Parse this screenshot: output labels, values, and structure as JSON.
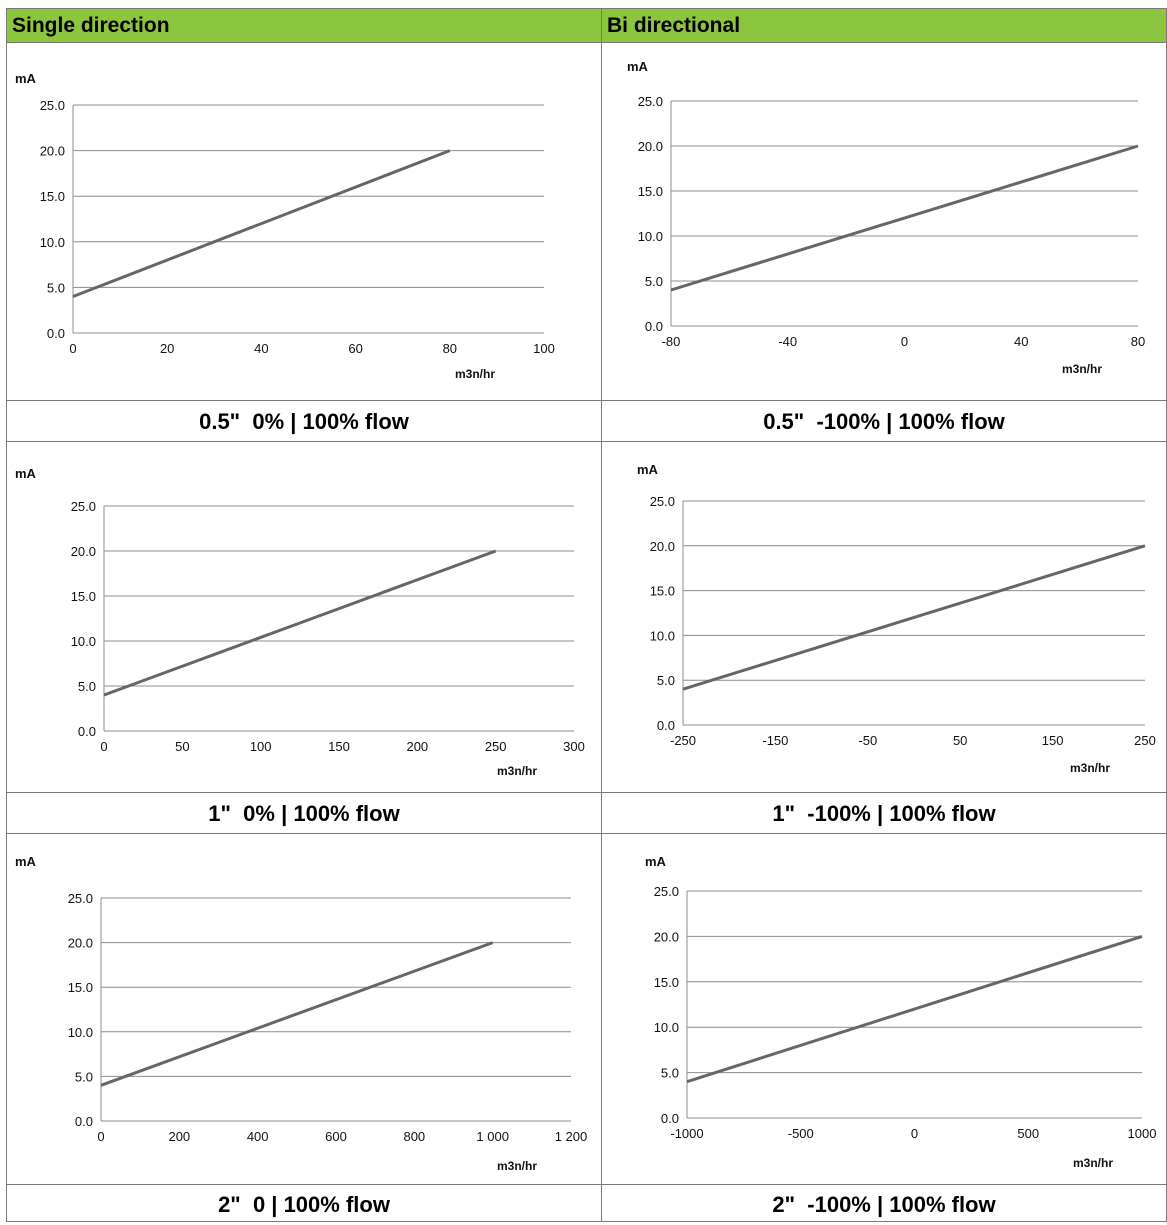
{
  "headers": {
    "single": "Single direction",
    "bi": "Bi directional"
  },
  "captions": [
    "0.5\"  0% | 100% flow",
    "0.5\"  -100% | 100% flow",
    "1\"  0% | 100% flow",
    "1\"  -100% | 100% flow",
    "2\"  0 | 100% flow",
    "2\"  -100% | 100% flow"
  ],
  "chart_data": [
    {
      "type": "line",
      "ylabel": "mA",
      "xlabel": "m3n/hr",
      "ylim": [
        0,
        25
      ],
      "xlim": [
        0,
        100
      ],
      "yticks": [
        "0.0",
        "5.0",
        "10.0",
        "15.0",
        "20.0",
        "25.0"
      ],
      "xticks": [
        {
          "v": 0,
          "label": "0"
        },
        {
          "v": 20,
          "label": "20"
        },
        {
          "v": 40,
          "label": "40"
        },
        {
          "v": 60,
          "label": "60"
        },
        {
          "v": 80,
          "label": "80"
        },
        {
          "v": 100,
          "label": "100"
        }
      ],
      "series": [
        {
          "x": [
            0,
            80
          ],
          "y": [
            4,
            20
          ]
        }
      ],
      "grid": true
    },
    {
      "type": "line",
      "ylabel": "mA",
      "xlabel": "m3n/hr",
      "ylim": [
        0,
        25
      ],
      "xlim": [
        -80,
        80
      ],
      "yticks": [
        "0.0",
        "5.0",
        "10.0",
        "15.0",
        "20.0",
        "25.0"
      ],
      "xticks": [
        {
          "v": -80,
          "label": "-80"
        },
        {
          "v": -40,
          "label": "-40"
        },
        {
          "v": 0,
          "label": "0"
        },
        {
          "v": 40,
          "label": "40"
        },
        {
          "v": 80,
          "label": "80"
        }
      ],
      "series": [
        {
          "x": [
            -80,
            80
          ],
          "y": [
            4,
            20
          ]
        }
      ],
      "grid": true
    },
    {
      "type": "line",
      "ylabel": "mA",
      "xlabel": "m3n/hr",
      "ylim": [
        0,
        25
      ],
      "xlim": [
        0,
        300
      ],
      "yticks": [
        "0.0",
        "5.0",
        "10.0",
        "15.0",
        "20.0",
        "25.0"
      ],
      "xticks": [
        {
          "v": 0,
          "label": "0"
        },
        {
          "v": 50,
          "label": "50"
        },
        {
          "v": 100,
          "label": "100"
        },
        {
          "v": 150,
          "label": "150"
        },
        {
          "v": 200,
          "label": "200"
        },
        {
          "v": 250,
          "label": "250"
        },
        {
          "v": 300,
          "label": "300"
        }
      ],
      "series": [
        {
          "x": [
            0,
            250
          ],
          "y": [
            4,
            20
          ]
        }
      ],
      "grid": true
    },
    {
      "type": "line",
      "ylabel": "mA",
      "xlabel": "m3n/hr",
      "ylim": [
        0,
        25
      ],
      "xlim": [
        -250,
        250
      ],
      "yticks": [
        "0.0",
        "5.0",
        "10.0",
        "15.0",
        "20.0",
        "25.0"
      ],
      "xticks": [
        {
          "v": -250,
          "label": "-250"
        },
        {
          "v": -150,
          "label": "-150"
        },
        {
          "v": -50,
          "label": "-50"
        },
        {
          "v": 50,
          "label": "50"
        },
        {
          "v": 150,
          "label": "150"
        },
        {
          "v": 250,
          "label": "250"
        }
      ],
      "series": [
        {
          "x": [
            -250,
            250
          ],
          "y": [
            4,
            20
          ]
        }
      ],
      "grid": true
    },
    {
      "type": "line",
      "ylabel": "mA",
      "xlabel": "m3n/hr",
      "ylim": [
        0,
        25
      ],
      "xlim": [
        0,
        1200
      ],
      "yticks": [
        "0.0",
        "5.0",
        "10.0",
        "15.0",
        "20.0",
        "25.0"
      ],
      "xticks": [
        {
          "v": 0,
          "label": "0"
        },
        {
          "v": 200,
          "label": "200"
        },
        {
          "v": 400,
          "label": "400"
        },
        {
          "v": 600,
          "label": "600"
        },
        {
          "v": 800,
          "label": "800"
        },
        {
          "v": 1000,
          "label": "1 000"
        },
        {
          "v": 1200,
          "label": "1 200"
        }
      ],
      "series": [
        {
          "x": [
            0,
            1000
          ],
          "y": [
            4,
            20
          ]
        }
      ],
      "grid": true
    },
    {
      "type": "line",
      "ylabel": "mA",
      "xlabel": "m3n/hr",
      "ylim": [
        0,
        25
      ],
      "xlim": [
        -1000,
        1000
      ],
      "yticks": [
        "0.0",
        "5.0",
        "10.0",
        "15.0",
        "20.0",
        "25.0"
      ],
      "xticks": [
        {
          "v": -1000,
          "label": "-1000"
        },
        {
          "v": -500,
          "label": "-500"
        },
        {
          "v": 0,
          "label": "0"
        },
        {
          "v": 500,
          "label": "500"
        },
        {
          "v": 1000,
          "label": "1000"
        }
      ],
      "series": [
        {
          "x": [
            -1000,
            1000
          ],
          "y": [
            4,
            20
          ]
        }
      ],
      "grid": true
    }
  ],
  "colors": {
    "header_bg": "#8cc63f",
    "line": "#666666",
    "grid": "#8c8c8c",
    "border": "#7a7a7a"
  }
}
